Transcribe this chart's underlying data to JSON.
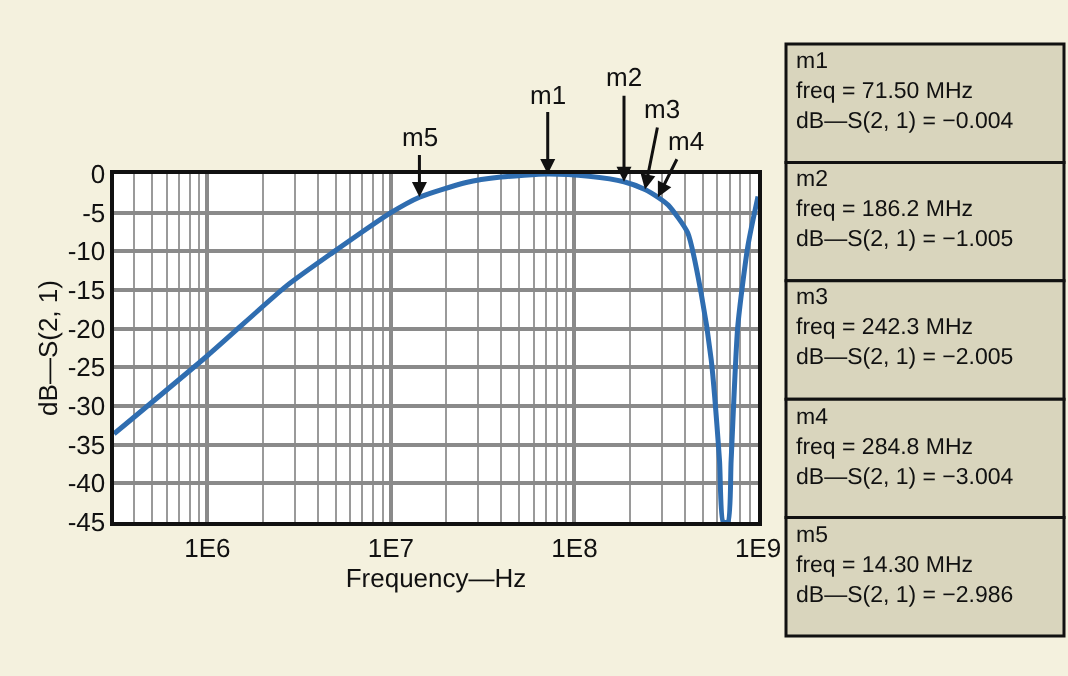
{
  "chart_data": {
    "type": "line",
    "xlabel": "Frequency—Hz",
    "ylabel": "dB—S(2, 1)",
    "x": [
      310000,
      1000000,
      2690000,
      4790000,
      10000000,
      14300000,
      25700000,
      39800000,
      71500000,
      120000000,
      186200000,
      242300000,
      284800000,
      324000000,
      414000000,
      490000000,
      556000000,
      617000000,
      646000000,
      686000000,
      714000000,
      776000000,
      881000000,
      1000000000
    ],
    "series": [
      {
        "color": "#2f6db0",
        "values": [
          -33.6,
          -23.5,
          -14.5,
          -10.2,
          -5.0,
          -3.0,
          -1.1,
          -0.4,
          0.0,
          -0.3,
          -1.0,
          -2.0,
          -3.0,
          -4.0,
          -7.6,
          -15.4,
          -24.0,
          -37.0,
          -45.0,
          -45.0,
          -37.0,
          -19.7,
          -9.3,
          -2.9
        ]
      }
    ],
    "xlim": [
      310000,
      1000000000
    ],
    "ylim": [
      -45,
      0
    ],
    "log": "x",
    "xticks": [
      {
        "value": 1000000,
        "label": "1E6"
      },
      {
        "value": 10000000,
        "label": "1E7"
      },
      {
        "value": 100000000,
        "label": "1E8"
      },
      {
        "value": 1000000000,
        "label": "1E9"
      }
    ],
    "yticks": [
      0,
      -5,
      -10,
      -15,
      -20,
      -25,
      -30,
      -35,
      -40,
      -45
    ],
    "grid": true,
    "marker": "none",
    "line_style": "solid",
    "annotations": [
      {
        "text": "m1",
        "x": 71500000,
        "y": -0.004
      },
      {
        "text": "m2",
        "x": 186200000,
        "y": -1.005
      },
      {
        "text": "m3",
        "x": 242300000,
        "y": -2.005
      },
      {
        "text": "m4",
        "x": 284800000,
        "y": -3.004
      },
      {
        "text": "m5",
        "x": 14300000,
        "y": -2.986
      },
      "m1\nfreq = 71.50 MHz\ndB—S(2, 1) = −0.004",
      "m2\nfreq = 186.2 MHz\ndB—S(2, 1) = −1.005",
      "m3\nfreq = 242.3 MHz\ndB—S(2, 1) = −2.005",
      "m4\nfreq = 284.8 MHz\ndB—S(2, 1) = −3.004",
      "m5\nfreq = 14.30 MHz\ndB—S(2, 1) = −2.986"
    ]
  }
}
